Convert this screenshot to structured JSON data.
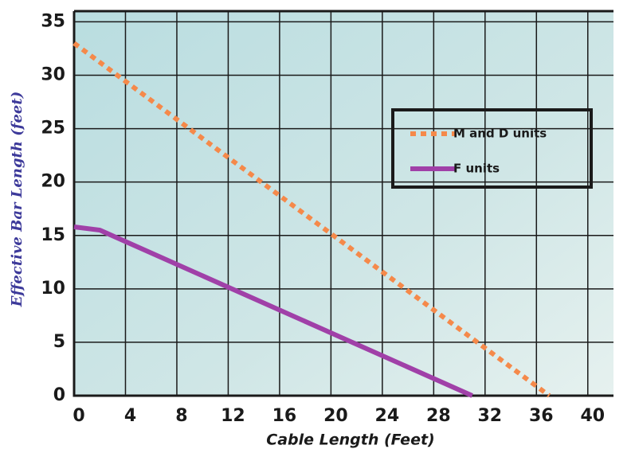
{
  "chart_data": {
    "type": "line",
    "x_label": "Cable Length (Feet)",
    "y_label": "Effective Bar Length (feet)",
    "xlim": [
      0,
      42
    ],
    "ylim": [
      0,
      36
    ],
    "xticks": [
      0,
      4,
      8,
      12,
      16,
      20,
      24,
      28,
      32,
      36,
      40
    ],
    "yticks": [
      0,
      5,
      10,
      15,
      20,
      25,
      30,
      35
    ],
    "grid": true,
    "legend": "upper right",
    "series": [
      {
        "name": "M and D units",
        "color": "#f5894a",
        "dashed": true,
        "x": [
          0,
          37
        ],
        "values": [
          33,
          0
        ]
      },
      {
        "name": "F units",
        "color": "#a040a8",
        "dashed": false,
        "x": [
          0,
          2,
          31
        ],
        "values": [
          15.8,
          15.5,
          0
        ]
      }
    ]
  }
}
